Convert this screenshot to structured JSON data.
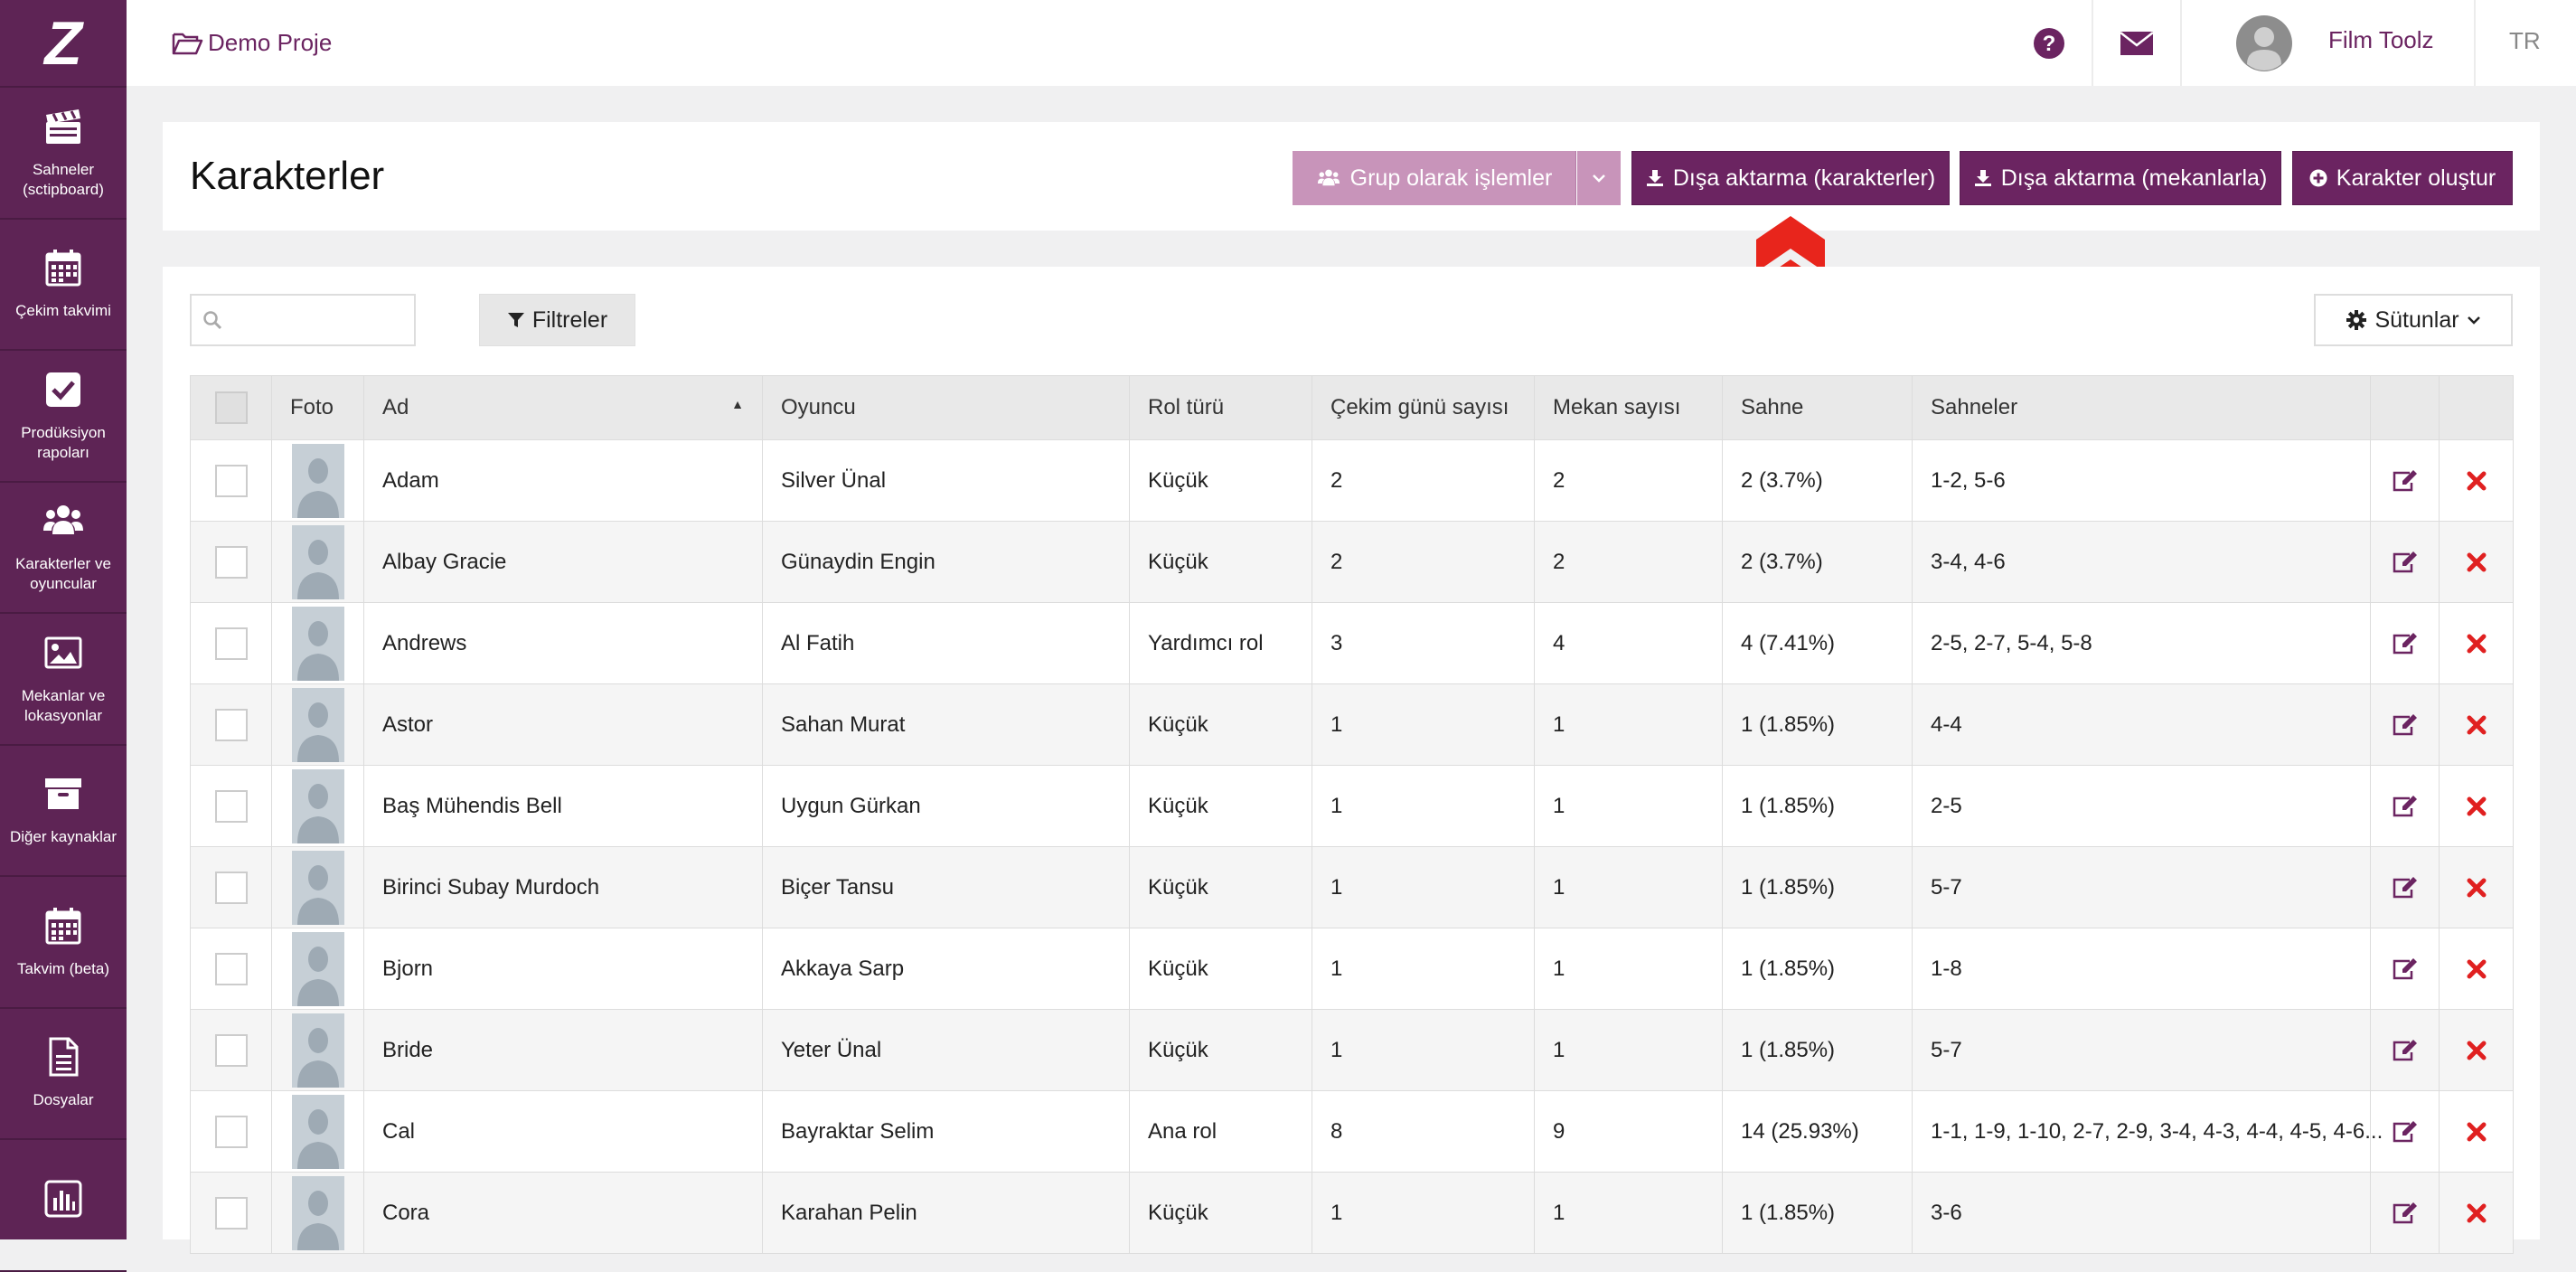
{
  "app": {
    "logo_text": "Z"
  },
  "sidebar": {
    "items": [
      {
        "label": "Sahneler (sctipboard)",
        "icon": "clapperboard-icon"
      },
      {
        "label": "Çekim takvimi",
        "icon": "calendar-icon"
      },
      {
        "label": "Prodüksiyon rapoları",
        "icon": "check-square-icon"
      },
      {
        "label": "Karakterler ve oyuncular",
        "icon": "users-icon"
      },
      {
        "label": "Mekanlar ve lokasyonlar",
        "icon": "image-icon"
      },
      {
        "label": "Diğer kaynaklar",
        "icon": "archive-icon"
      },
      {
        "label": "Takvim (beta)",
        "icon": "calendar-icon"
      },
      {
        "label": "Dosyalar",
        "icon": "file-icon"
      },
      {
        "label": "",
        "icon": "bar-chart-icon"
      }
    ]
  },
  "topbar": {
    "project": "Demo Proje",
    "user_name": "Film Toolz",
    "language": "TR",
    "icons": [
      "help-icon",
      "mail-icon",
      "avatar"
    ]
  },
  "header": {
    "title": "Karakterler",
    "group_actions_label": "Grup olarak işlemler",
    "export_characters_label": "Dışa aktarma (karakterler)",
    "export_locations_label": "Dışa aktarma (mekanlarla)",
    "create_character_label": "Karakter oluştur"
  },
  "toolbar": {
    "search_placeholder": "",
    "filters_label": "Filtreler",
    "columns_label": "Sütunlar"
  },
  "table": {
    "columns": [
      "",
      "Foto",
      "Ad",
      "Oyuncu",
      "Rol türü",
      "Çekim günü sayısı",
      "Mekan sayısı",
      "Sahne",
      "Sahneler",
      "",
      ""
    ],
    "sorted_column": "Ad",
    "sort_direction": "ascending",
    "rows": [
      {
        "name": "Adam",
        "actor": "Silver Ünal",
        "role": "Küçük",
        "shoot_days": "2",
        "locations": "2",
        "scene": "2 (3.7%)",
        "scenes": "1-2, 5-6"
      },
      {
        "name": "Albay Gracie",
        "actor": "Günaydin Engin",
        "role": "Küçük",
        "shoot_days": "2",
        "locations": "2",
        "scene": "2 (3.7%)",
        "scenes": "3-4, 4-6"
      },
      {
        "name": "Andrews",
        "actor": "Al Fatih",
        "role": "Yardımcı rol",
        "shoot_days": "3",
        "locations": "4",
        "scene": "4 (7.41%)",
        "scenes": "2-5, 2-7, 5-4, 5-8"
      },
      {
        "name": "Astor",
        "actor": "Sahan Murat",
        "role": "Küçük",
        "shoot_days": "1",
        "locations": "1",
        "scene": "1 (1.85%)",
        "scenes": "4-4"
      },
      {
        "name": "Baş Mühendis Bell",
        "actor": "Uygun Gürkan",
        "role": "Küçük",
        "shoot_days": "1",
        "locations": "1",
        "scene": "1 (1.85%)",
        "scenes": "2-5"
      },
      {
        "name": "Birinci Subay Murdoch",
        "actor": "Biçer Tansu",
        "role": "Küçük",
        "shoot_days": "1",
        "locations": "1",
        "scene": "1 (1.85%)",
        "scenes": "5-7"
      },
      {
        "name": "Bjorn",
        "actor": "Akkaya Sarp",
        "role": "Küçük",
        "shoot_days": "1",
        "locations": "1",
        "scene": "1 (1.85%)",
        "scenes": "1-8"
      },
      {
        "name": "Bride",
        "actor": "Yeter Ünal",
        "role": "Küçük",
        "shoot_days": "1",
        "locations": "1",
        "scene": "1 (1.85%)",
        "scenes": "5-7"
      },
      {
        "name": "Cal",
        "actor": "Bayraktar Selim",
        "role": "Ana rol",
        "shoot_days": "8",
        "locations": "9",
        "scene": "14 (25.93%)",
        "scenes": "1-1, 1-9, 1-10, 2-7, 2-9, 3-4, 4-3, 4-4, 4-5, 4-6..."
      },
      {
        "name": "Cora",
        "actor": "Karahan Pelin",
        "role": "Küçük",
        "shoot_days": "1",
        "locations": "1",
        "scene": "1 (1.85%)",
        "scenes": "3-6"
      }
    ]
  },
  "colors": {
    "brand": "#6b2461",
    "sidebar": "#5e2455",
    "button_light": "#c894ba",
    "delete": "#e02020",
    "marker": "#e8251c"
  }
}
